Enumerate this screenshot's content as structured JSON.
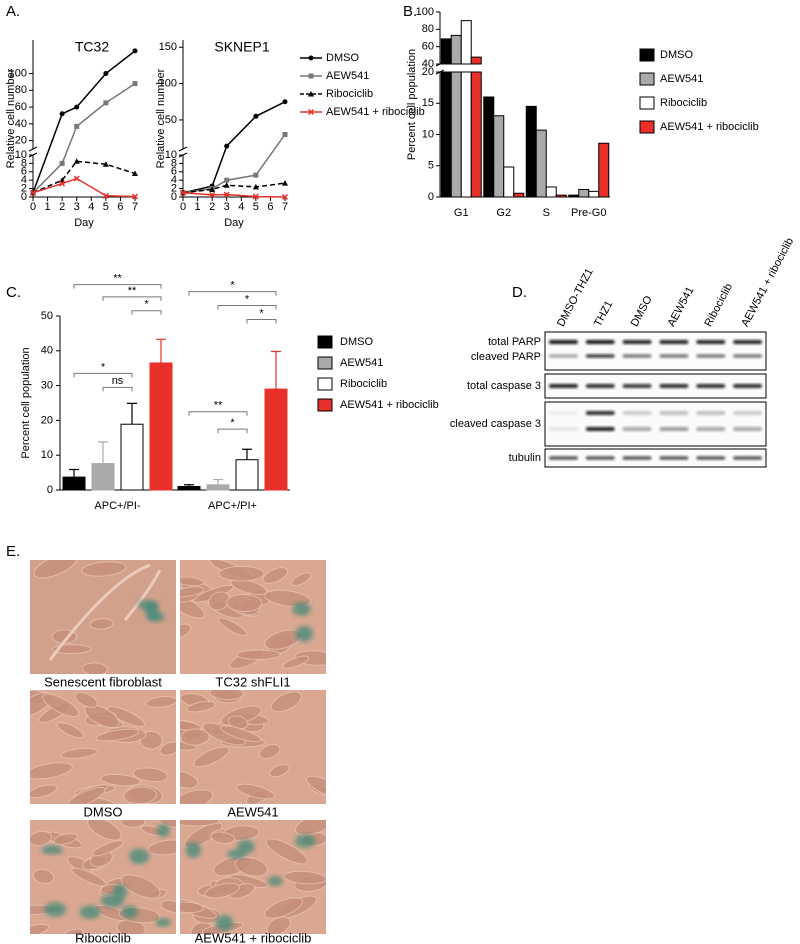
{
  "figure_labels": [
    "A.",
    "B.",
    "C.",
    "D.",
    "E."
  ],
  "chart_data": [
    {
      "type": "line",
      "xlabel": "Day",
      "ylabel": "Relative cell number",
      "x": [
        0,
        2,
        3,
        5,
        7
      ],
      "xlim": [
        0,
        7
      ],
      "xticks": [
        0,
        1,
        2,
        3,
        4,
        5,
        6,
        7
      ],
      "series": [
        {
          "name": "DMSO",
          "color": "#000000",
          "marker": "circle",
          "dash": false
        },
        {
          "name": "AEW541",
          "color": "#777777",
          "marker": "square",
          "dash": false
        },
        {
          "name": "Ribociclib",
          "color": "#000000",
          "marker": "triangle",
          "dash": true
        },
        {
          "name": "AEW541 + ribociclib",
          "color": "#e8302a",
          "marker": "cross",
          "dash": false
        }
      ],
      "subplots": [
        {
          "title": "TC32",
          "ylim_lower": [
            0,
            10
          ],
          "yticks_lower": [
            0,
            2,
            4,
            6,
            8,
            10
          ],
          "ylim_upper": [
            10,
            140
          ],
          "yticks_upper": [
            20,
            40,
            60,
            80,
            100
          ],
          "values": [
            [
              1,
              52,
              60,
              100,
              127
            ],
            [
              1,
              8,
              37,
              65,
              88
            ],
            [
              1,
              4,
              8.5,
              7.8,
              5.6
            ],
            [
              1,
              3.2,
              4.4,
              0.3,
              0.1
            ]
          ]
        },
        {
          "title": "SKNEP1",
          "ylim_lower": [
            0,
            10
          ],
          "yticks_lower": [
            0,
            2,
            4,
            6,
            8,
            10
          ],
          "ylim_upper": [
            10,
            160
          ],
          "yticks_upper": [
            50,
            100,
            150
          ],
          "values": [
            [
              1,
              2.6,
              14,
              55,
              75
            ],
            [
              1,
              2,
              4,
              5.2,
              30
            ],
            [
              1,
              1.8,
              2.8,
              2.4,
              3.3
            ],
            [
              1,
              0.5,
              0.6,
              0.1,
              0
            ]
          ]
        }
      ]
    },
    {
      "type": "bar",
      "ylabel": "Percent cell population",
      "categories": [
        "G1",
        "G2",
        "S",
        "Pre-G0"
      ],
      "ylim_lower": [
        0,
        20
      ],
      "yticks_lower": [
        0,
        5,
        10,
        15,
        20
      ],
      "ylim_upper": [
        40,
        100
      ],
      "yticks_upper": [
        40,
        60,
        80,
        100
      ],
      "series": [
        {
          "name": "DMSO",
          "color": "#000000",
          "values": [
            69,
            16,
            14.5,
            0.3
          ]
        },
        {
          "name": "AEW541",
          "color": "#aaaaaa",
          "values": [
            73,
            13,
            10.7,
            1.2
          ]
        },
        {
          "name": "Ribociclib",
          "color": "#ffffff",
          "values": [
            90,
            4.8,
            1.6,
            0.9
          ]
        },
        {
          "name": "AEW541 + ribociclib",
          "color": "#e8302a",
          "values": [
            48,
            0.6,
            0.3,
            8.6
          ]
        }
      ]
    },
    {
      "type": "bar",
      "ylabel": "Percent cell population",
      "categories": [
        "APC+/PI-",
        "APC+/PI+"
      ],
      "ylim": [
        0,
        50
      ],
      "yticks": [
        0,
        10,
        20,
        30,
        40,
        50
      ],
      "series": [
        {
          "name": "DMSO",
          "color": "#000000",
          "values": [
            3.7,
            1
          ],
          "errors": [
            2.2,
            0.5
          ]
        },
        {
          "name": "AEW541",
          "color": "#aaaaaa",
          "values": [
            7.6,
            1.5
          ],
          "errors": [
            6.2,
            1.5
          ]
        },
        {
          "name": "Ribociclib",
          "color": "#ffffff",
          "values": [
            18.9,
            8.7
          ],
          "errors": [
            6,
            3
          ]
        },
        {
          "name": "AEW541 + ribociclib",
          "color": "#e8302a",
          "values": [
            36.5,
            29
          ],
          "errors": [
            6.8,
            10.8
          ]
        }
      ],
      "annotations": [
        "**",
        "**",
        "*",
        "*",
        "ns",
        "*",
        "*",
        "*",
        "**",
        "*"
      ]
    }
  ],
  "blot": {
    "lanes": [
      "DMSO-THZ1",
      "THZ1",
      "DMSO",
      "AEW541",
      "Ribociclib",
      "AEW541 + ribociclib"
    ],
    "rows": [
      "total PARP",
      "cleaved PARP",
      "total caspase 3",
      "cleaved caspase 3",
      "tubulin"
    ]
  },
  "images": {
    "captions": [
      "Senescent fibroblast",
      "TC32 shFLI1",
      "DMSO",
      "AEW541",
      "Ribociclib",
      "AEW541 + ribociclib"
    ]
  }
}
